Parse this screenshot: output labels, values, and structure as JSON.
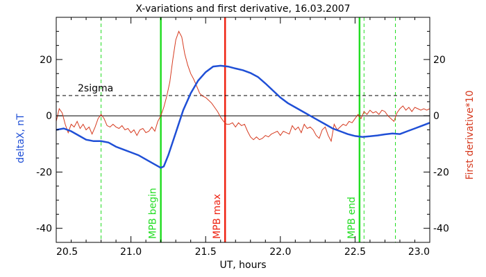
{
  "chart_data": {
    "type": "line",
    "title": "X-variations and first derivative, 16.03.2007",
    "xlabel": "UT, hours",
    "ylabel_left": "deltaX, nT",
    "ylabel_right": "First derivative*10",
    "xlim": [
      20.5,
      23.0
    ],
    "ylim": [
      -45,
      35
    ],
    "x_ticks": [
      20.5,
      21.0,
      21.5,
      22.0,
      22.5,
      23.0
    ],
    "x_tick_labels": [
      "20.5",
      "21.0",
      "21.5",
      "22.0",
      "22.5",
      "23.0"
    ],
    "y_ticks": [
      -40,
      -20,
      0,
      20
    ],
    "y_tick_labels": [
      "-40",
      "-20",
      "0",
      "20"
    ],
    "grid": false,
    "colors": {
      "deltaX": "#1f4fd6",
      "derivative": "#d63a1f",
      "mpb_lines": "#22dd22",
      "mpb_max_line": "#ee2211",
      "axes": "#000000"
    },
    "threshold": {
      "label": "2sigma",
      "y": 7.2
    },
    "zero_line": 0,
    "series": [
      {
        "key": "deltaX",
        "axis": "left",
        "x": [
          20.5,
          20.55,
          20.6,
          20.65,
          20.7,
          20.75,
          20.8,
          20.85,
          20.9,
          20.95,
          21.0,
          21.05,
          21.1,
          21.15,
          21.2,
          21.22,
          21.25,
          21.3,
          21.35,
          21.4,
          21.45,
          21.5,
          21.55,
          21.6,
          21.65,
          21.7,
          21.75,
          21.8,
          21.85,
          21.9,
          21.95,
          22.0,
          22.05,
          22.1,
          22.15,
          22.2,
          22.25,
          22.3,
          22.35,
          22.4,
          22.45,
          22.5,
          22.55,
          22.6,
          22.65,
          22.7,
          22.75,
          22.8,
          22.85,
          22.9,
          22.95,
          23.0
        ],
        "values": [
          -5,
          -4.5,
          -5.5,
          -7,
          -8.5,
          -9,
          -9,
          -9.5,
          -11,
          -12,
          -13,
          -14,
          -15.5,
          -17,
          -18.5,
          -18,
          -14,
          -6,
          2,
          8,
          12.5,
          15.5,
          17.5,
          17.8,
          17.5,
          16.8,
          16.2,
          15.2,
          13.8,
          11.5,
          9,
          6.5,
          4.5,
          3,
          1.5,
          0,
          -1.5,
          -3,
          -4.5,
          -5.5,
          -6.5,
          -7.2,
          -7.5,
          -7.3,
          -7,
          -6.6,
          -6.3,
          -6.5,
          -5.5,
          -4.5,
          -3.5,
          -2.5
        ]
      },
      {
        "key": "derivative",
        "axis": "right",
        "x": [
          20.5,
          20.52,
          20.54,
          20.56,
          20.58,
          20.6,
          20.62,
          20.64,
          20.66,
          20.68,
          20.7,
          20.72,
          20.74,
          20.76,
          20.78,
          20.8,
          20.82,
          20.84,
          20.86,
          20.88,
          20.9,
          20.92,
          20.94,
          20.96,
          20.98,
          21.0,
          21.02,
          21.04,
          21.06,
          21.08,
          21.1,
          21.12,
          21.14,
          21.16,
          21.18,
          21.2,
          21.22,
          21.24,
          21.26,
          21.28,
          21.3,
          21.32,
          21.34,
          21.36,
          21.38,
          21.4,
          21.42,
          21.44,
          21.46,
          21.48,
          21.5,
          21.52,
          21.54,
          21.56,
          21.58,
          21.6,
          21.62,
          21.64,
          21.66,
          21.68,
          21.7,
          21.72,
          21.74,
          21.76,
          21.78,
          21.8,
          21.82,
          21.84,
          21.86,
          21.88,
          21.9,
          21.92,
          21.94,
          21.96,
          21.98,
          22.0,
          22.02,
          22.04,
          22.06,
          22.08,
          22.1,
          22.12,
          22.14,
          22.16,
          22.18,
          22.2,
          22.22,
          22.24,
          22.26,
          22.28,
          22.3,
          22.32,
          22.34,
          22.36,
          22.38,
          22.4,
          22.42,
          22.44,
          22.46,
          22.48,
          22.5,
          22.52,
          22.54,
          22.56,
          22.58,
          22.6,
          22.62,
          22.64,
          22.66,
          22.68,
          22.7,
          22.72,
          22.74,
          22.76,
          22.78,
          22.8,
          22.82,
          22.84,
          22.86,
          22.88,
          22.9,
          22.92,
          22.94,
          22.96,
          22.98,
          23.0
        ],
        "values": [
          -2,
          2.5,
          1,
          -3,
          -6,
          -3,
          -4,
          -2,
          -4.5,
          -3,
          -5,
          -4,
          -6.5,
          -4,
          -1,
          0.5,
          -1,
          -3.5,
          -4,
          -3,
          -4,
          -4.5,
          -3.5,
          -5,
          -4.5,
          -6,
          -5,
          -7,
          -5,
          -4.5,
          -6,
          -5.5,
          -4,
          -5.5,
          -2,
          0,
          3,
          7,
          12,
          20,
          27,
          30,
          28,
          22,
          18,
          15,
          13,
          10.5,
          8,
          7,
          6.5,
          5.5,
          4.5,
          3,
          1.5,
          -0.5,
          -2,
          -3,
          -3,
          -2.5,
          -4,
          -2.5,
          -3.5,
          -3,
          -5.5,
          -7.5,
          -8.5,
          -7.5,
          -8.5,
          -8,
          -7,
          -7.5,
          -6.5,
          -6,
          -5.5,
          -7,
          -5.5,
          -6,
          -6.5,
          -3.5,
          -5,
          -4,
          -6,
          -3,
          -4.5,
          -4,
          -5,
          -7,
          -8,
          -5,
          -4,
          -7,
          -9,
          -3,
          -5,
          -4,
          -3,
          -3.5,
          -2,
          -2.5,
          -1,
          0.5,
          -1,
          1.5,
          0.5,
          2,
          1,
          1.5,
          0.5,
          2,
          1.5,
          0,
          -1,
          -2,
          1,
          2.5,
          3.5,
          2,
          3,
          1.5,
          3,
          2.5,
          2,
          2.5,
          2,
          2.5
        ]
      }
    ],
    "vertical_markers": [
      {
        "key": "mpb_begin",
        "x": 21.2,
        "style": "solid",
        "color": "#22dd22",
        "label": "MPB begin"
      },
      {
        "key": "mpb_max",
        "x": 21.63,
        "style": "solid",
        "color": "#ee2211",
        "label": "MPB max"
      },
      {
        "key": "mpb_end",
        "x": 22.53,
        "style": "solid",
        "color": "#22dd22",
        "label": "MPB end"
      },
      {
        "key": "dash_1",
        "x": 20.8,
        "style": "dashed",
        "color": "#22dd22",
        "label": ""
      },
      {
        "key": "dash_2",
        "x": 22.56,
        "style": "dashed",
        "color": "#22dd22",
        "label": ""
      },
      {
        "key": "dash_3",
        "x": 22.77,
        "style": "dashed",
        "color": "#22dd22",
        "label": ""
      }
    ]
  }
}
